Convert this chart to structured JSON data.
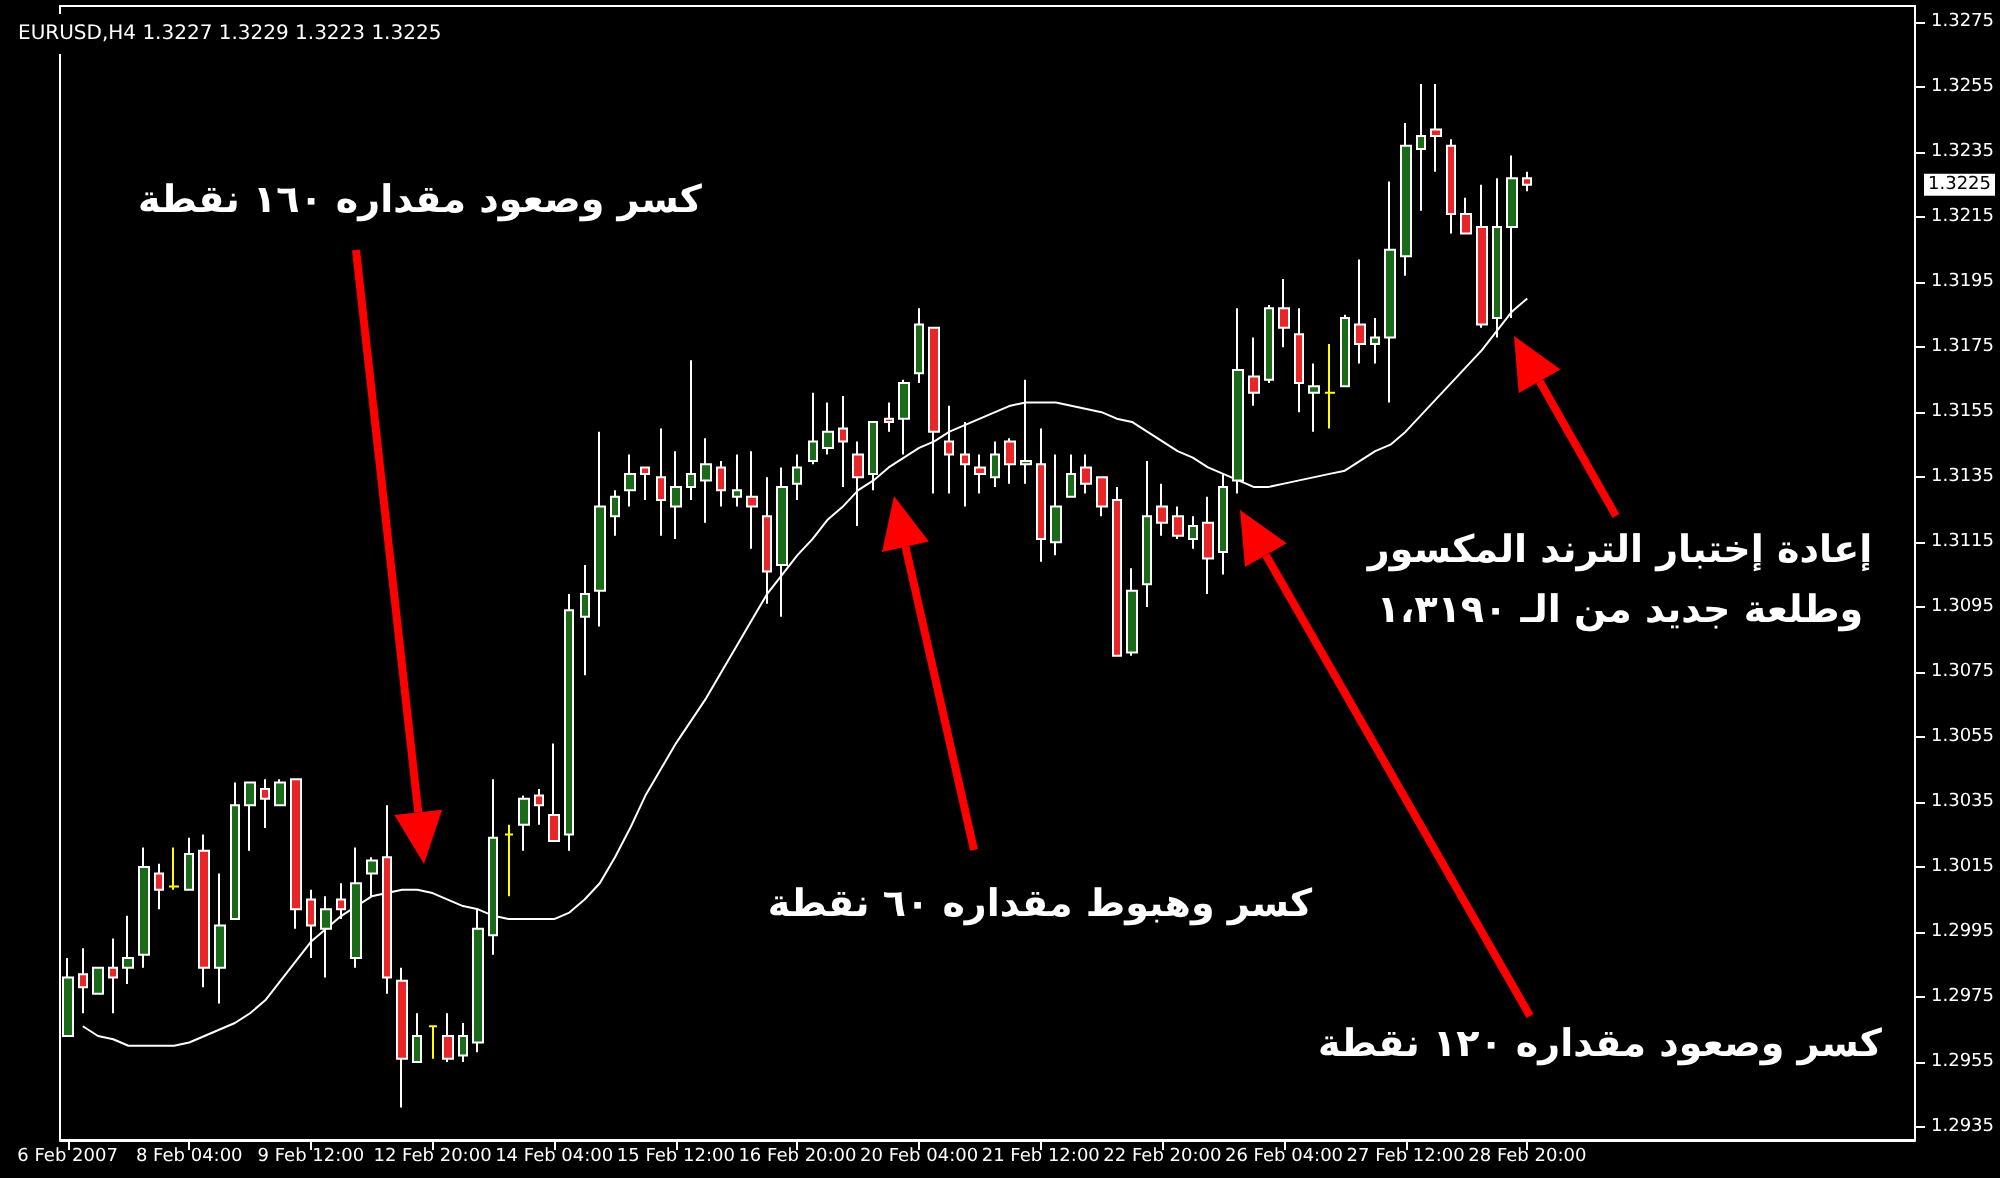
{
  "chart_data": {
    "type": "candlestick",
    "title": "EURUSD,H4 1.3227 1.3229 1.3223 1.3225",
    "categories": [
      "6 Feb 2007",
      null,
      null,
      null,
      null,
      null,
      null,
      null,
      "8 Feb 04:00",
      null,
      null,
      null,
      null,
      null,
      null,
      null,
      "9 Feb 12:00",
      null,
      null,
      null,
      null,
      null,
      null,
      null,
      "12 Feb 20:00",
      null,
      null,
      null,
      null,
      null,
      null,
      null,
      "14 Feb 04:00",
      null,
      null,
      null,
      null,
      null,
      null,
      null,
      "15 Feb 12:00",
      null,
      null,
      null,
      null,
      null,
      null,
      null,
      "16 Feb 20:00",
      null,
      null,
      null,
      null,
      null,
      null,
      null,
      "20 Feb 04:00",
      null,
      null,
      null,
      null,
      null,
      null,
      null,
      "21 Feb 12:00",
      null,
      null,
      null,
      null,
      null,
      null,
      null,
      "22 Feb 20:00",
      null,
      null,
      null,
      null,
      null,
      null,
      null,
      "26 Feb 04:00",
      null,
      null,
      null,
      null,
      null,
      null,
      null,
      "27 Feb 12:00",
      null,
      null,
      null,
      null,
      null,
      null,
      null,
      "28 Feb 20:00"
    ],
    "ohlc": [
      [
        1.2963,
        1.2987,
        1.2963,
        1.2981
      ],
      [
        1.2982,
        1.299,
        1.297,
        1.2978
      ],
      [
        1.2976,
        1.2984,
        1.2976,
        1.2984
      ],
      [
        1.2984,
        1.2993,
        1.297,
        1.2981
      ],
      [
        1.2984,
        1.3,
        1.2979,
        1.2987
      ],
      [
        1.2988,
        1.3021,
        1.2984,
        1.3015
      ],
      [
        1.3013,
        1.3016,
        1.3002,
        1.3008
      ],
      [
        1.3009,
        1.3021,
        1.3008,
        1.3009
      ],
      [
        1.3008,
        1.3024,
        1.3008,
        1.3019
      ],
      [
        1.302,
        1.3025,
        1.2978,
        1.2984
      ],
      [
        1.2984,
        1.3013,
        1.2973,
        1.2997
      ],
      [
        1.2999,
        1.3041,
        1.2999,
        1.3034
      ],
      [
        1.3034,
        1.3041,
        1.302,
        1.3041
      ],
      [
        1.3039,
        1.3042,
        1.3027,
        1.3036
      ],
      [
        1.3034,
        1.3042,
        1.3034,
        1.3041
      ],
      [
        1.3042,
        1.3042,
        1.2996,
        1.3002
      ],
      [
        1.3005,
        1.3008,
        1.2987,
        1.2997
      ],
      [
        1.2996,
        1.3006,
        1.2981,
        1.3002
      ],
      [
        1.3005,
        1.301,
        1.2999,
        1.3002
      ],
      [
        1.2987,
        1.3021,
        1.2984,
        1.301
      ],
      [
        1.3013,
        1.3018,
        1.3006,
        1.3017
      ],
      [
        1.3018,
        1.3034,
        1.2976,
        1.2981
      ],
      [
        1.298,
        1.2984,
        1.2941,
        1.2956
      ],
      [
        1.2955,
        1.297,
        1.2955,
        1.2963
      ],
      [
        1.2966,
        1.2966,
        1.2956,
        1.2966
      ],
      [
        1.2963,
        1.297,
        1.2955,
        1.2956
      ],
      [
        1.2957,
        1.2967,
        1.2955,
        1.2963
      ],
      [
        1.2961,
        1.3002,
        1.2958,
        1.2996
      ],
      [
        1.2994,
        1.3042,
        1.2988,
        1.3024
      ],
      [
        1.3025,
        1.3028,
        1.3006,
        1.3025
      ],
      [
        1.3028,
        1.3037,
        1.302,
        1.3036
      ],
      [
        1.3037,
        1.3039,
        1.3028,
        1.3034
      ],
      [
        1.3031,
        1.3053,
        1.3023,
        1.3023
      ],
      [
        1.3025,
        1.3099,
        1.302,
        1.3094
      ],
      [
        1.3092,
        1.3108,
        1.3074,
        1.3099
      ],
      [
        1.31,
        1.3149,
        1.3089,
        1.3126
      ],
      [
        1.3123,
        1.3131,
        1.3117,
        1.3129
      ],
      [
        1.3131,
        1.3142,
        1.3126,
        1.3136
      ],
      [
        1.3138,
        1.3138,
        1.3128,
        1.3136
      ],
      [
        1.3135,
        1.315,
        1.3117,
        1.3128
      ],
      [
        1.3126,
        1.3143,
        1.3116,
        1.3132
      ],
      [
        1.3132,
        1.3171,
        1.3128,
        1.3136
      ],
      [
        1.3134,
        1.3147,
        1.3121,
        1.3139
      ],
      [
        1.3138,
        1.314,
        1.3126,
        1.3131
      ],
      [
        1.3129,
        1.3142,
        1.3126,
        1.3131
      ],
      [
        1.3129,
        1.3143,
        1.3113,
        1.3126
      ],
      [
        1.3123,
        1.3135,
        1.3096,
        1.3106
      ],
      [
        1.3108,
        1.3138,
        1.3092,
        1.3132
      ],
      [
        1.3133,
        1.3142,
        1.3128,
        1.3138
      ],
      [
        1.314,
        1.3161,
        1.3139,
        1.3146
      ],
      [
        1.3144,
        1.3158,
        1.3142,
        1.3149
      ],
      [
        1.315,
        1.316,
        1.3132,
        1.3146
      ],
      [
        1.3142,
        1.3146,
        1.312,
        1.3135
      ],
      [
        1.3136,
        1.3152,
        1.3131,
        1.3152
      ],
      [
        1.3153,
        1.3158,
        1.3149,
        1.3152
      ],
      [
        1.3153,
        1.3165,
        1.3142,
        1.3164
      ],
      [
        1.3167,
        1.3187,
        1.3164,
        1.3182
      ],
      [
        1.3181,
        1.3181,
        1.313,
        1.3149
      ],
      [
        1.3146,
        1.3157,
        1.313,
        1.3142
      ],
      [
        1.3142,
        1.3152,
        1.3126,
        1.3139
      ],
      [
        1.3138,
        1.3142,
        1.313,
        1.3136
      ],
      [
        1.3135,
        1.3146,
        1.3132,
        1.3142
      ],
      [
        1.3146,
        1.3147,
        1.3133,
        1.3139
      ],
      [
        1.3139,
        1.3165,
        1.3133,
        1.314
      ],
      [
        1.3139,
        1.315,
        1.3109,
        1.3116
      ],
      [
        1.3115,
        1.3142,
        1.3111,
        1.3126
      ],
      [
        1.3129,
        1.3142,
        1.3129,
        1.3136
      ],
      [
        1.3138,
        1.3142,
        1.313,
        1.3133
      ],
      [
        1.3135,
        1.3135,
        1.3123,
        1.3126
      ],
      [
        1.3128,
        1.3132,
        1.308,
        1.308
      ],
      [
        1.3081,
        1.3107,
        1.308,
        1.31
      ],
      [
        1.3102,
        1.314,
        1.3095,
        1.3123
      ],
      [
        1.3126,
        1.3133,
        1.3117,
        1.3121
      ],
      [
        1.3123,
        1.3126,
        1.3116,
        1.3117
      ],
      [
        1.3116,
        1.3123,
        1.3113,
        1.312
      ],
      [
        1.3121,
        1.3129,
        1.3099,
        1.311
      ],
      [
        1.3112,
        1.3136,
        1.3105,
        1.3132
      ],
      [
        1.3134,
        1.3187,
        1.313,
        1.3168
      ],
      [
        1.3166,
        1.3178,
        1.3157,
        1.3161
      ],
      [
        1.3165,
        1.3188,
        1.3164,
        1.3187
      ],
      [
        1.3187,
        1.3196,
        1.3175,
        1.3181
      ],
      [
        1.3179,
        1.3187,
        1.3155,
        1.3164
      ],
      [
        1.3161,
        1.317,
        1.3149,
        1.3163
      ],
      [
        1.3161,
        1.3176,
        1.315,
        1.3161
      ],
      [
        1.3163,
        1.3185,
        1.3163,
        1.3184
      ],
      [
        1.3182,
        1.3202,
        1.317,
        1.3176
      ],
      [
        1.3176,
        1.3184,
        1.317,
        1.3178
      ],
      [
        1.3178,
        1.3226,
        1.3158,
        1.3205
      ],
      [
        1.3203,
        1.3244,
        1.3197,
        1.3237
      ],
      [
        1.3236,
        1.3256,
        1.3217,
        1.324
      ],
      [
        1.3242,
        1.3256,
        1.3229,
        1.324
      ],
      [
        1.3237,
        1.3239,
        1.321,
        1.3216
      ],
      [
        1.3216,
        1.3221,
        1.321,
        1.321
      ],
      [
        1.3212,
        1.3225,
        1.3181,
        1.3182
      ],
      [
        1.3184,
        1.3227,
        1.3178,
        1.3212
      ],
      [
        1.3212,
        1.3234,
        1.3184,
        1.3227
      ],
      [
        1.3227,
        1.3229,
        1.3223,
        1.3225
      ]
    ],
    "colors": [
      "#1a6a1a",
      "#e8262a",
      "#1a6a1a",
      "#e8262a",
      "#1a6a1a",
      "#1a6a1a",
      "#e8262a",
      "#ffff00",
      "#1a6a1a",
      "#e8262a",
      "#1a6a1a",
      "#1a6a1a",
      "#1a6a1a",
      "#e8262a",
      "#1a6a1a",
      "#e8262a",
      "#e8262a",
      "#1a6a1a",
      "#e8262a",
      "#1a6a1a",
      "#1a6a1a",
      "#e8262a",
      "#e8262a",
      "#1a6a1a",
      "#ffff00",
      "#e8262a",
      "#1a6a1a",
      "#1a6a1a",
      "#1a6a1a",
      "#ffff00",
      "#1a6a1a",
      "#e8262a",
      "#e8262a",
      "#1a6a1a",
      "#1a6a1a",
      "#1a6a1a",
      "#1a6a1a",
      "#1a6a1a",
      "#e8262a",
      "#e8262a",
      "#1a6a1a",
      "#1a6a1a",
      "#1a6a1a",
      "#e8262a",
      "#1a6a1a",
      "#e8262a",
      "#e8262a",
      "#1a6a1a",
      "#1a6a1a",
      "#1a6a1a",
      "#1a6a1a",
      "#e8262a",
      "#e8262a",
      "#1a6a1a",
      "#e8262a",
      "#1a6a1a",
      "#1a6a1a",
      "#e8262a",
      "#e8262a",
      "#e8262a",
      "#e8262a",
      "#1a6a1a",
      "#e8262a",
      "#1a6a1a",
      "#e8262a",
      "#1a6a1a",
      "#1a6a1a",
      "#e8262a",
      "#e8262a",
      "#e8262a",
      "#1a6a1a",
      "#1a6a1a",
      "#e8262a",
      "#e8262a",
      "#1a6a1a",
      "#e8262a",
      "#1a6a1a",
      "#1a6a1a",
      "#e8262a",
      "#1a6a1a",
      "#e8262a",
      "#e8262a",
      "#1a6a1a",
      "#ffff00",
      "#1a6a1a",
      "#e8262a",
      "#1a6a1a",
      "#1a6a1a",
      "#1a6a1a",
      "#1a6a1a",
      "#e8262a",
      "#e8262a",
      "#e8262a",
      "#e8262a",
      "#1a6a1a",
      "#1a6a1a",
      "#e8262a"
    ],
    "series": [
      {
        "type": "line",
        "color": "#ffffff",
        "values": [
          null,
          1.2966,
          1.2963,
          1.2962,
          1.296,
          1.296,
          1.296,
          1.296,
          1.2961,
          1.2963,
          1.2965,
          1.2967,
          1.297,
          1.2974,
          1.298,
          1.2986,
          1.2992,
          1.2996,
          1.3,
          1.3003,
          1.3006,
          1.3007,
          1.3008,
          1.3008,
          1.3007,
          1.3005,
          1.3003,
          1.3002,
          1.3,
          1.2999,
          1.2999,
          1.2999,
          1.2999,
          1.3001,
          1.3005,
          1.301,
          1.3018,
          1.3027,
          1.3037,
          1.3045,
          1.3053,
          1.306,
          1.3067,
          1.3075,
          1.3083,
          1.3091,
          1.3099,
          1.3105,
          1.3111,
          1.3116,
          1.3122,
          1.3126,
          1.3131,
          1.3134,
          1.3138,
          1.3141,
          1.3144,
          1.3146,
          1.3149,
          1.3151,
          1.3153,
          1.3155,
          1.3157,
          1.3158,
          1.3158,
          1.3158,
          1.3157,
          1.3156,
          1.3155,
          1.3153,
          1.3152,
          1.3149,
          1.3146,
          1.3143,
          1.3141,
          1.3138,
          1.3136,
          1.3134,
          1.3132,
          1.3132,
          1.3133,
          1.3134,
          1.3135,
          1.3136,
          1.3137,
          1.314,
          1.3143,
          1.3145,
          1.3149,
          1.3154,
          1.3159,
          1.3164,
          1.3169,
          1.3174,
          1.318,
          1.3186,
          1.319
        ]
      }
    ],
    "ylim": [
      1.2931,
      1.328
    ],
    "yticks": [
      1.2935,
      1.2955,
      1.2975,
      1.2995,
      1.3015,
      1.3035,
      1.3055,
      1.3075,
      1.3095,
      1.3115,
      1.3135,
      1.3155,
      1.3175,
      1.3195,
      1.3215,
      1.3235,
      1.3255,
      1.3275
    ],
    "grid": false,
    "marker": "none",
    "line_style": "solid",
    "annotations": [
      "كسر وصعود مقداره ١٦٠ نقطة",
      "كسر وهبوط مقداره ٦٠ نقطة",
      "كسر وصعود مقداره ١٢٠ نقطة",
      "إعادة إختبار الترند المكسور\nوطلعة جديد من الـ ١،٣١٩٠",
      "1.3225"
    ]
  }
}
